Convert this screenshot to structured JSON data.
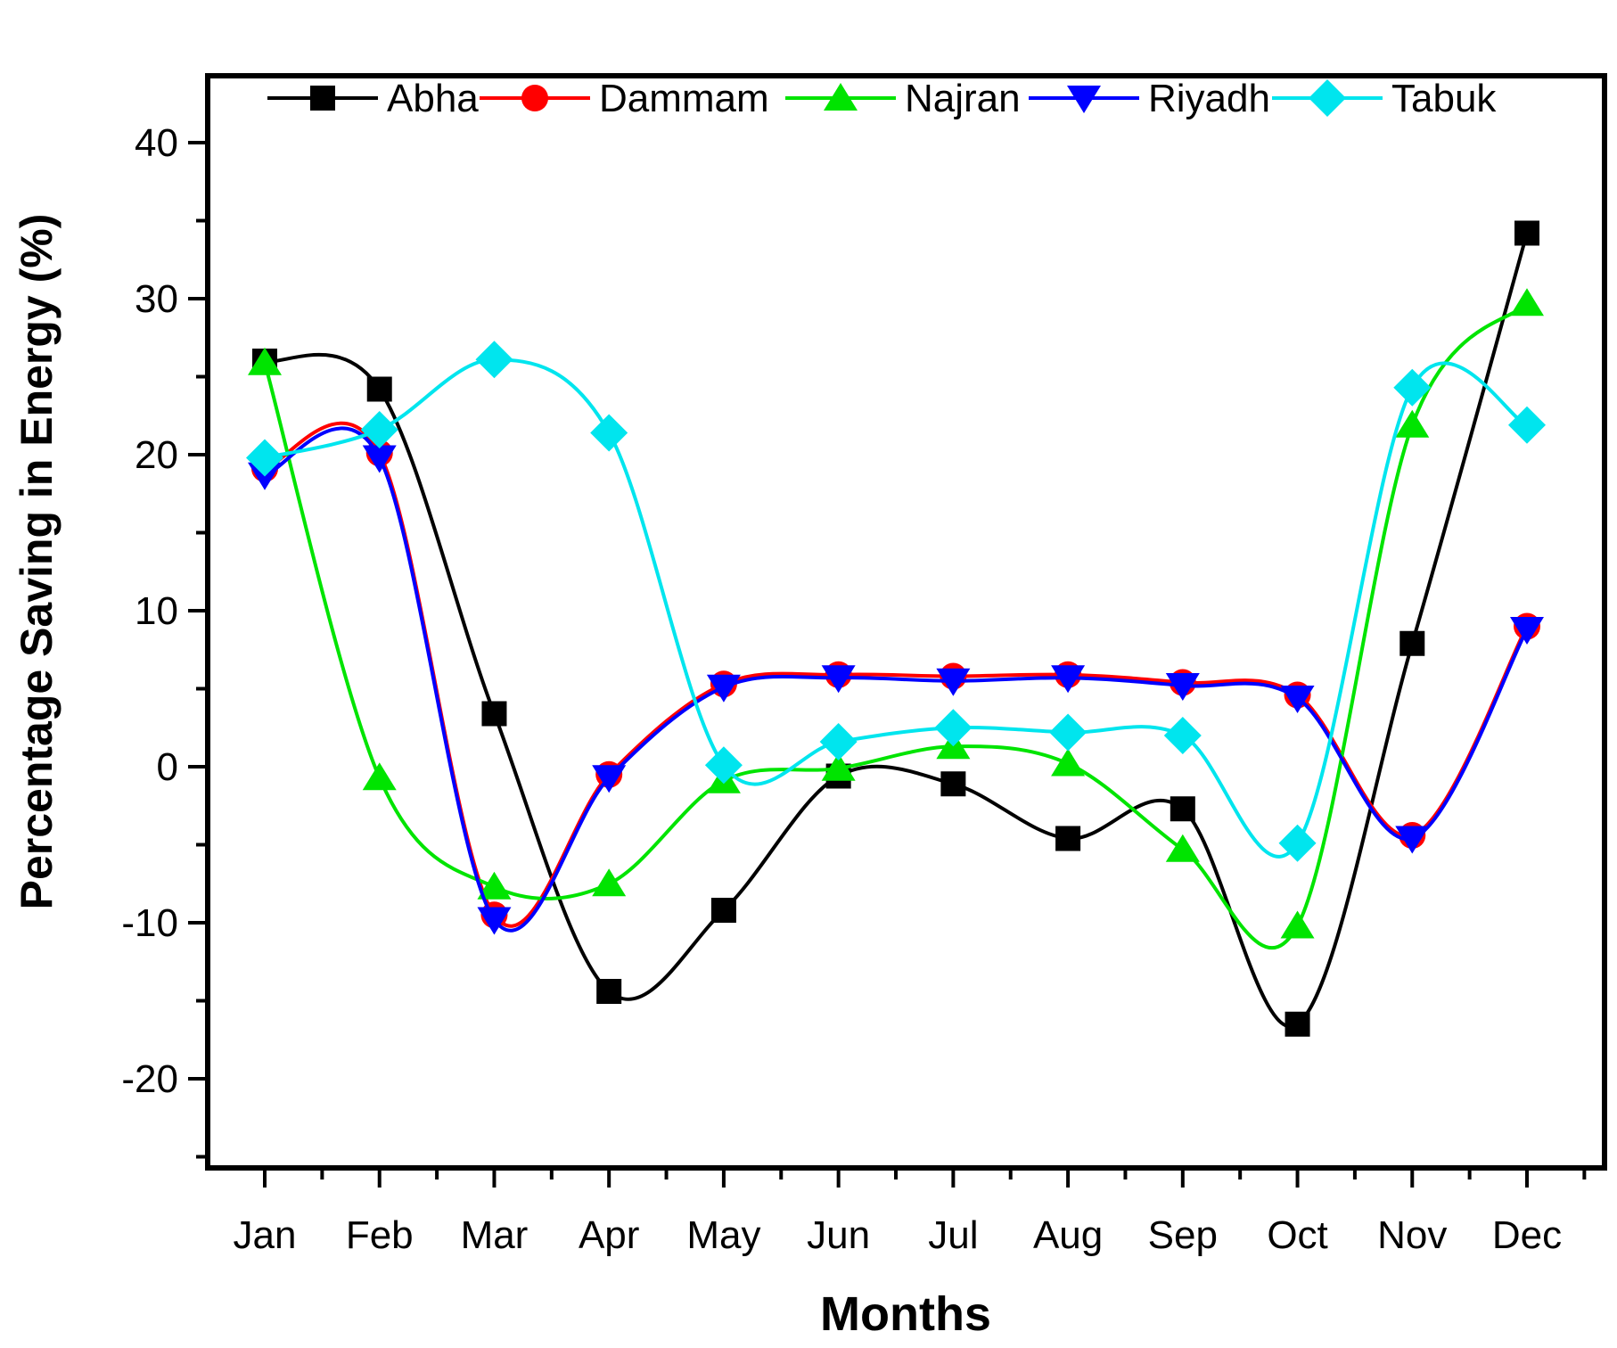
{
  "chart_data": {
    "type": "line",
    "title": "",
    "xlabel": "Months",
    "ylabel": "Percentage Saving in Energy (%)",
    "categories": [
      "Jan",
      "Feb",
      "Mar",
      "Apr",
      "May",
      "Jun",
      "Jul",
      "Aug",
      "Sep",
      "Oct",
      "Nov",
      "Dec"
    ],
    "ylim": [
      -25,
      45
    ],
    "yticks": [
      40,
      30,
      20,
      10,
      0,
      -10,
      -20
    ],
    "ytick_labels": [
      "40",
      "30",
      "20",
      "10",
      "0",
      "-10",
      "-20"
    ],
    "yticks_minor": [
      35,
      25,
      15,
      5,
      -5,
      -15,
      -25
    ],
    "grid": false,
    "legend_position": "top-inside-horizontal",
    "line_style": "smooth-spline",
    "series": [
      {
        "name": "Abha",
        "color": "#000000",
        "marker": "square",
        "values": [
          26.0,
          24.2,
          3.4,
          -14.4,
          -9.2,
          -0.6,
          -1.1,
          -4.6,
          -2.7,
          -16.5,
          7.9,
          34.2
        ]
      },
      {
        "name": "Dammam",
        "color": "#ff0000",
        "marker": "circle",
        "values": [
          19.1,
          20.1,
          -9.5,
          -0.5,
          5.3,
          5.9,
          5.8,
          5.9,
          5.4,
          4.6,
          -4.4,
          9.0
        ]
      },
      {
        "name": "Najran",
        "color": "#00e400",
        "marker": "triangle-up",
        "values": [
          25.9,
          -0.7,
          -7.7,
          -7.5,
          -0.9,
          -0.1,
          1.3,
          0.2,
          -5.3,
          -10.2,
          21.9,
          29.7
        ]
      },
      {
        "name": "Riyadh",
        "color": "#0000ff",
        "marker": "triangle-down",
        "values": [
          18.7,
          19.8,
          -9.8,
          -0.7,
          5.1,
          5.7,
          5.5,
          5.7,
          5.2,
          4.4,
          -4.6,
          8.8
        ]
      },
      {
        "name": "Tabuk",
        "color": "#00e5ee",
        "marker": "diamond",
        "values": [
          19.8,
          21.6,
          26.1,
          21.4,
          0.1,
          1.6,
          2.5,
          2.2,
          2.0,
          -4.9,
          24.3,
          21.9
        ]
      }
    ]
  }
}
